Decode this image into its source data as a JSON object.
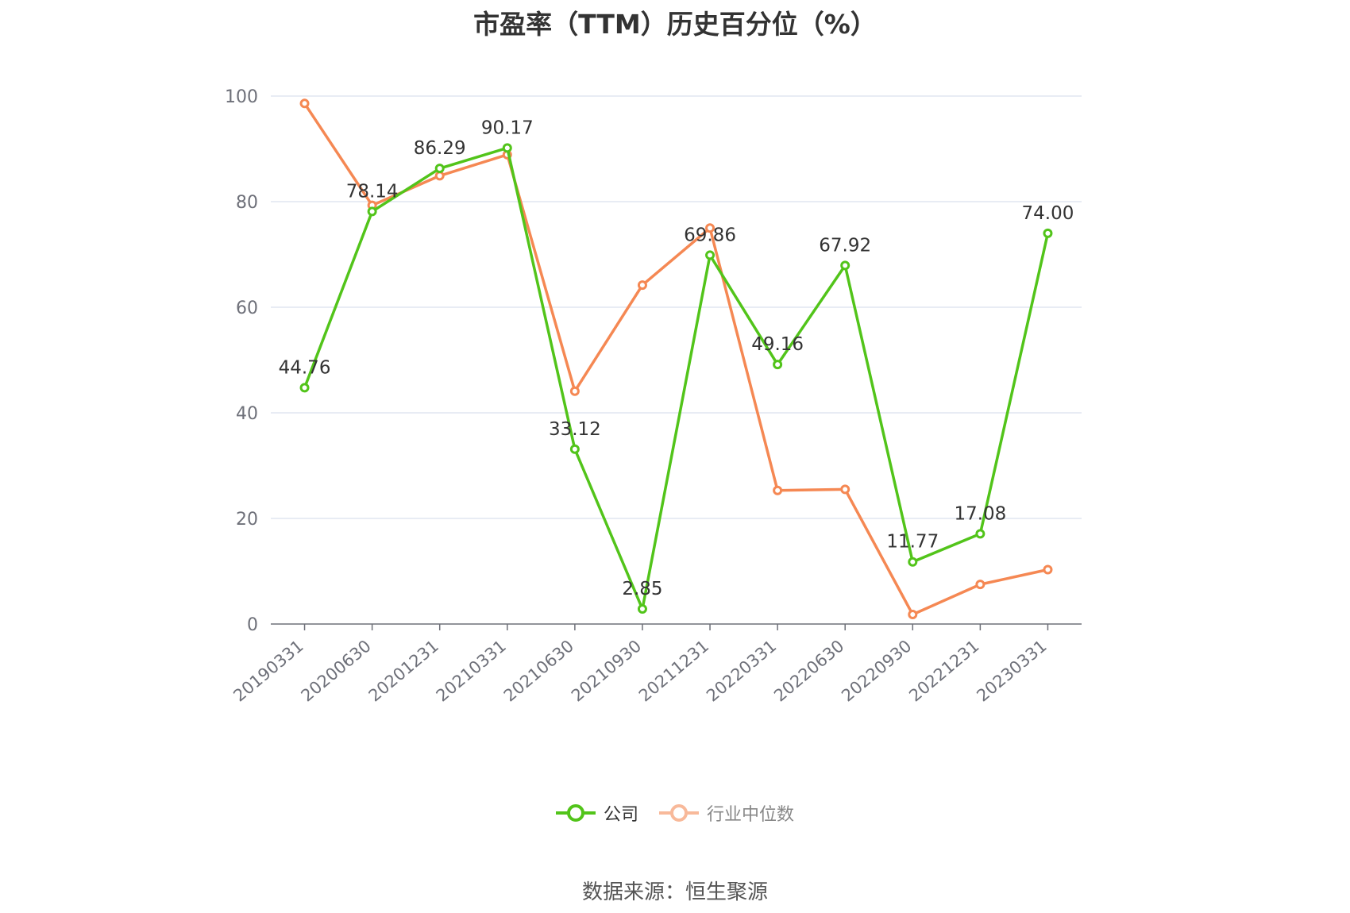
{
  "chart_data": {
    "type": "line",
    "title": "市盈率（TTM）历史百分位（%）",
    "categories": [
      "20190331",
      "20200630",
      "20201231",
      "20210331",
      "20210630",
      "20210930",
      "20211231",
      "20220331",
      "20220630",
      "20220930",
      "20221231",
      "20230331"
    ],
    "series": [
      {
        "name": "公司",
        "color": "#52c41a",
        "values": [
          44.76,
          78.14,
          86.29,
          90.17,
          33.12,
          2.85,
          69.86,
          49.16,
          67.92,
          11.77,
          17.08,
          74.0
        ],
        "labels": [
          "44.76",
          "78.14",
          "86.29",
          "90.17",
          "33.12",
          "2.85",
          "69.86",
          "49.16",
          "67.92",
          "11.77",
          "17.08",
          "74.00"
        ]
      },
      {
        "name": "行业中位数",
        "color": "#f58853",
        "values": [
          98.6,
          79.3,
          84.9,
          88.9,
          44.1,
          64.2,
          75.0,
          25.3,
          25.5,
          1.8,
          7.5,
          10.3
        ]
      }
    ],
    "y_ticks": [
      "0",
      "20",
      "40",
      "60",
      "80",
      "100"
    ],
    "ylim": [
      0,
      100
    ],
    "grid": true,
    "legend_position": "bottom-center"
  },
  "source": "数据来源：恒生聚源"
}
